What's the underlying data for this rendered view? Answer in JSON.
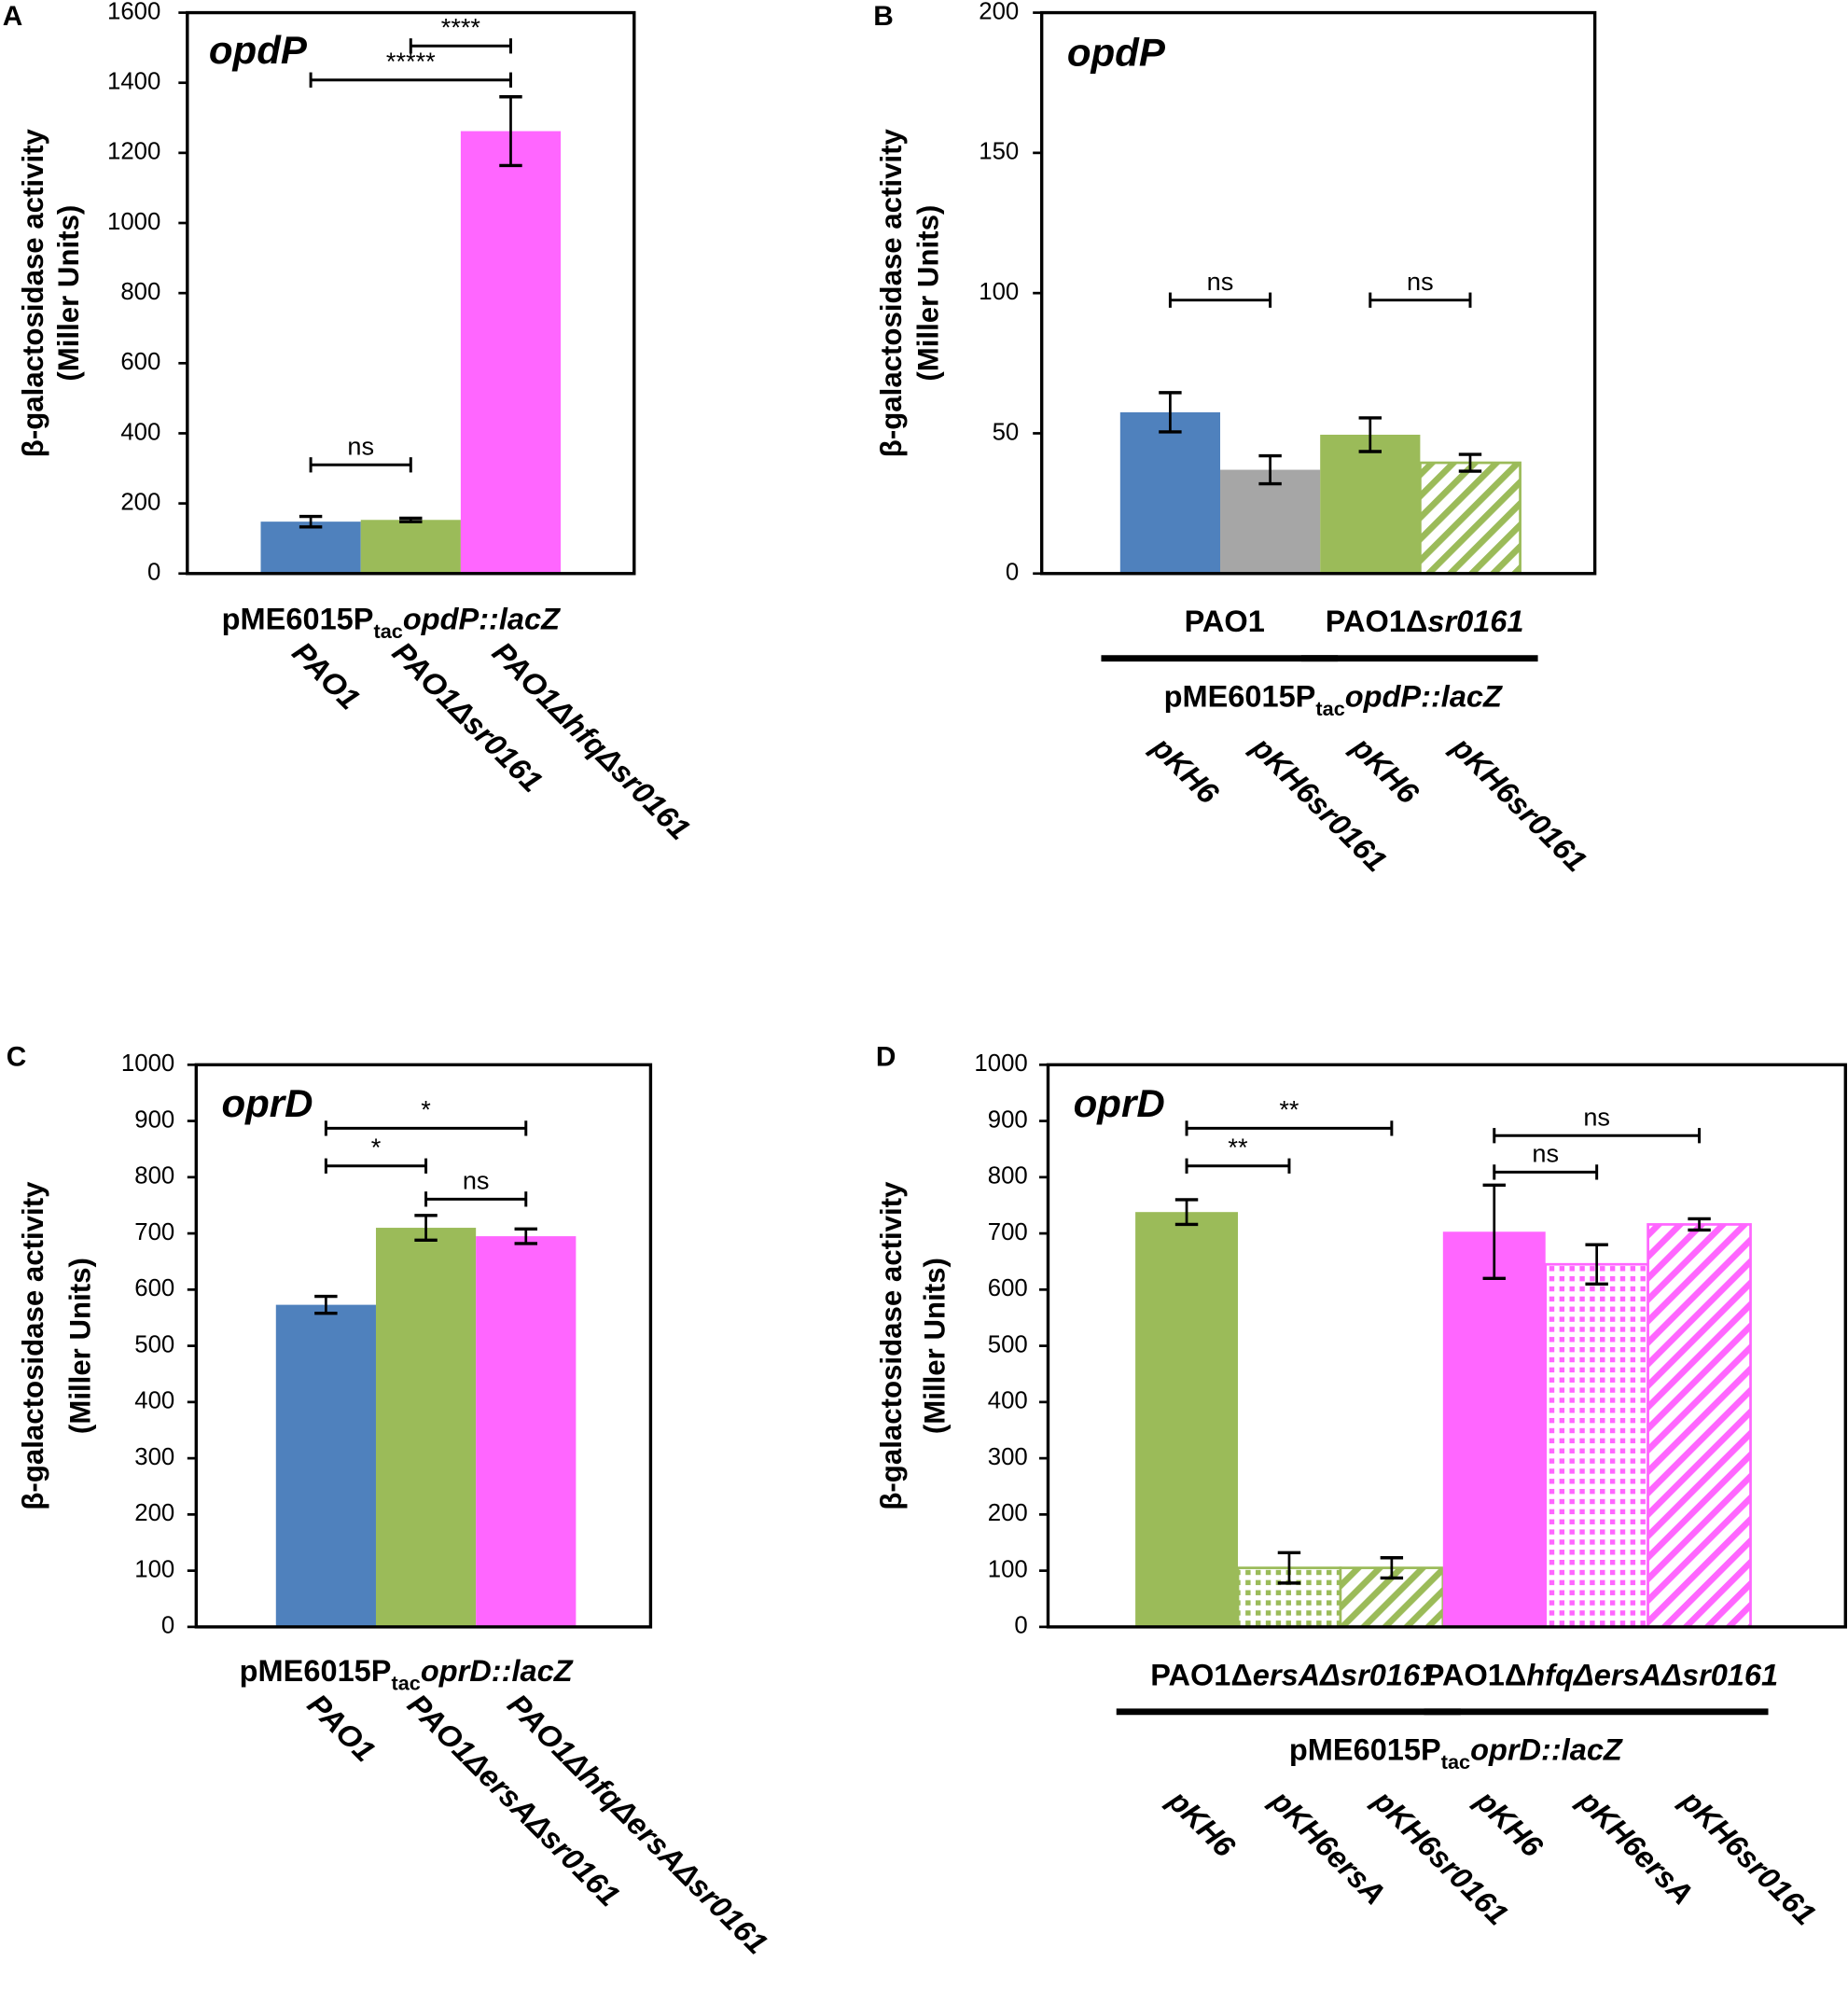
{
  "chart_data": [
    {
      "type": "bar",
      "panel": "A",
      "title": "opdP",
      "ylabel": [
        "β-galactosidase activity",
        "(Miller Units)"
      ],
      "ylim": [
        0,
        1600
      ],
      "ytick_step": 200,
      "construct": {
        "prefix": "pME6015P",
        "sub": "tac",
        "italic": "opdP::lacZ"
      },
      "categories": [
        "PAO1",
        "PAO1Δsr0161",
        "PAO1ΔhfqΔsr0161"
      ],
      "values": [
        148,
        153,
        1262
      ],
      "errors": [
        15,
        5,
        98
      ],
      "colors": [
        "#4f81bd",
        "#9bbb59",
        "#ff66ff"
      ],
      "patterns": [
        "solid",
        "solid",
        "solid"
      ],
      "significance": [
        {
          "from": 0,
          "to": 1,
          "y": 310,
          "label": "ns"
        },
        {
          "from": 0,
          "to": 2,
          "y": 1408,
          "label": "*****"
        },
        {
          "from": 1,
          "to": 2,
          "y": 1505,
          "label": "****"
        }
      ],
      "groups": []
    },
    {
      "type": "bar",
      "panel": "B",
      "title": "opdP",
      "ylabel": [
        "β-galactosidase activity",
        "(Miller Units)"
      ],
      "ylim": [
        0,
        200
      ],
      "ytick_step": 50,
      "construct": {
        "prefix": "pME6015P",
        "sub": "tac",
        "italic": "opdP::lacZ"
      },
      "categories": [
        "pKH6",
        "pKH6sr0161",
        "pKH6",
        "pKH6sr0161"
      ],
      "values": [
        57.5,
        37,
        49.5,
        39.5
      ],
      "errors": [
        7,
        5,
        6,
        3
      ],
      "colors": [
        "#4f81bd",
        "#a6a6a6",
        "#9bbb59",
        "#9bbb59"
      ],
      "patterns": [
        "solid",
        "solid",
        "solid",
        "hatch"
      ],
      "significance": [
        {
          "from": 0,
          "to": 1,
          "y": 97.5,
          "label": "ns"
        },
        {
          "from": 2,
          "to": 3,
          "y": 97.5,
          "label": "ns"
        }
      ],
      "groups": [
        {
          "normal": "PAO1",
          "italic": "",
          "from": 0,
          "to": 1
        },
        {
          "normal": "PAO1Δ",
          "italic": "sr0161",
          "from": 2,
          "to": 3
        }
      ]
    },
    {
      "type": "bar",
      "panel": "C",
      "title": "oprD",
      "ylabel": [
        "β-galactosidase activity",
        "(Miller Units)"
      ],
      "ylim": [
        0,
        1000
      ],
      "ytick_step": 100,
      "construct": {
        "prefix": "pME6015P",
        "sub": "tac",
        "italic": "oprD::lacZ"
      },
      "categories": [
        "PAO1",
        "PAO1ΔersAΔsr0161",
        "PAO1ΔhfqΔersAΔsr0161"
      ],
      "values": [
        573,
        710,
        695
      ],
      "errors": [
        15,
        22,
        13
      ],
      "colors": [
        "#4f81bd",
        "#9bbb59",
        "#ff66ff"
      ],
      "patterns": [
        "solid",
        "solid",
        "solid"
      ],
      "significance": [
        {
          "from": 0,
          "to": 2,
          "y": 887,
          "label": "*"
        },
        {
          "from": 0,
          "to": 1,
          "y": 820,
          "label": "*"
        },
        {
          "from": 1,
          "to": 2,
          "y": 761,
          "label": "ns"
        }
      ],
      "groups": []
    },
    {
      "type": "bar",
      "panel": "D",
      "title": "oprD",
      "ylabel": [
        "β-galactosidase activity",
        "(Miller Units)"
      ],
      "ylim": [
        0,
        1000
      ],
      "ytick_step": 100,
      "construct": {
        "prefix": "pME6015P",
        "sub": "tac",
        "italic": "oprD::lacZ"
      },
      "categories": [
        "pKH6",
        "pKH6ersA",
        "pKH6sr0161",
        "pKH6",
        "pKH6ersA",
        "pKH6sr0161"
      ],
      "values": [
        738,
        105,
        105,
        703,
        645,
        716
      ],
      "errors": [
        22,
        27,
        18,
        83,
        35,
        10
      ],
      "colors": [
        "#9bbb59",
        "#9bbb59",
        "#9bbb59",
        "#ff66ff",
        "#ff66ff",
        "#ff66ff"
      ],
      "patterns": [
        "solid",
        "dots",
        "hatch",
        "solid",
        "dots",
        "hatch"
      ],
      "significance": [
        {
          "from": 0,
          "to": 2,
          "y": 887,
          "label": "**"
        },
        {
          "from": 0,
          "to": 1,
          "y": 820,
          "label": "**"
        },
        {
          "from": 3,
          "to": 5,
          "y": 874,
          "label": "ns"
        },
        {
          "from": 3,
          "to": 4,
          "y": 809,
          "label": "ns"
        }
      ],
      "groups": [
        {
          "normal": "PAO1Δ",
          "italic": "ersAΔsr0161",
          "from": 0,
          "to": 2
        },
        {
          "normal": "PAO1Δ",
          "italic": "hfqΔersAΔsr0161",
          "from": 3,
          "to": 5
        }
      ]
    }
  ]
}
